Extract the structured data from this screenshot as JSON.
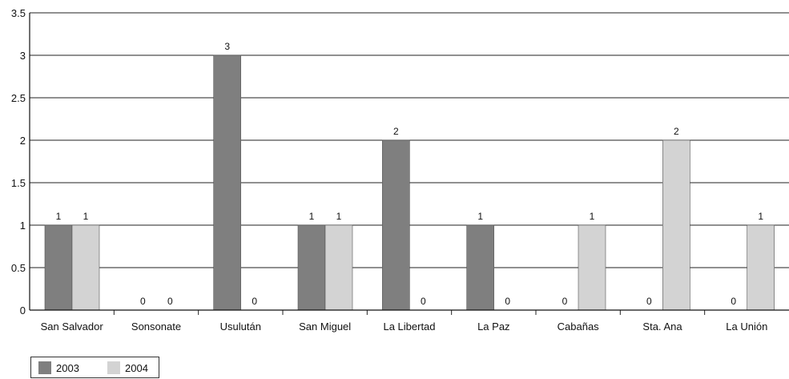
{
  "chart_data": {
    "type": "bar",
    "categories": [
      "San Salvador",
      "Sonsonate",
      "Usulután",
      "San Miguel",
      "La Libertad",
      "La Paz",
      "Cabañas",
      "Sta. Ana",
      "La Unión"
    ],
    "series": [
      {
        "name": "2003",
        "values": [
          1,
          0,
          3,
          1,
          2,
          1,
          0,
          0,
          0
        ],
        "color": "#7f7f7f"
      },
      {
        "name": "2004",
        "values": [
          1,
          0,
          0,
          1,
          0,
          0,
          1,
          2,
          1
        ],
        "color": "#d3d3d3"
      }
    ],
    "yticks": [
      "0",
      "0.5",
      "1",
      "1.5",
      "2",
      "2.5",
      "3",
      "3.5"
    ],
    "ylim": [
      0,
      3.5
    ],
    "grid": true,
    "data_labels": true,
    "legend_position": "bottom-left",
    "title": "",
    "xlabel": "",
    "ylabel": ""
  }
}
